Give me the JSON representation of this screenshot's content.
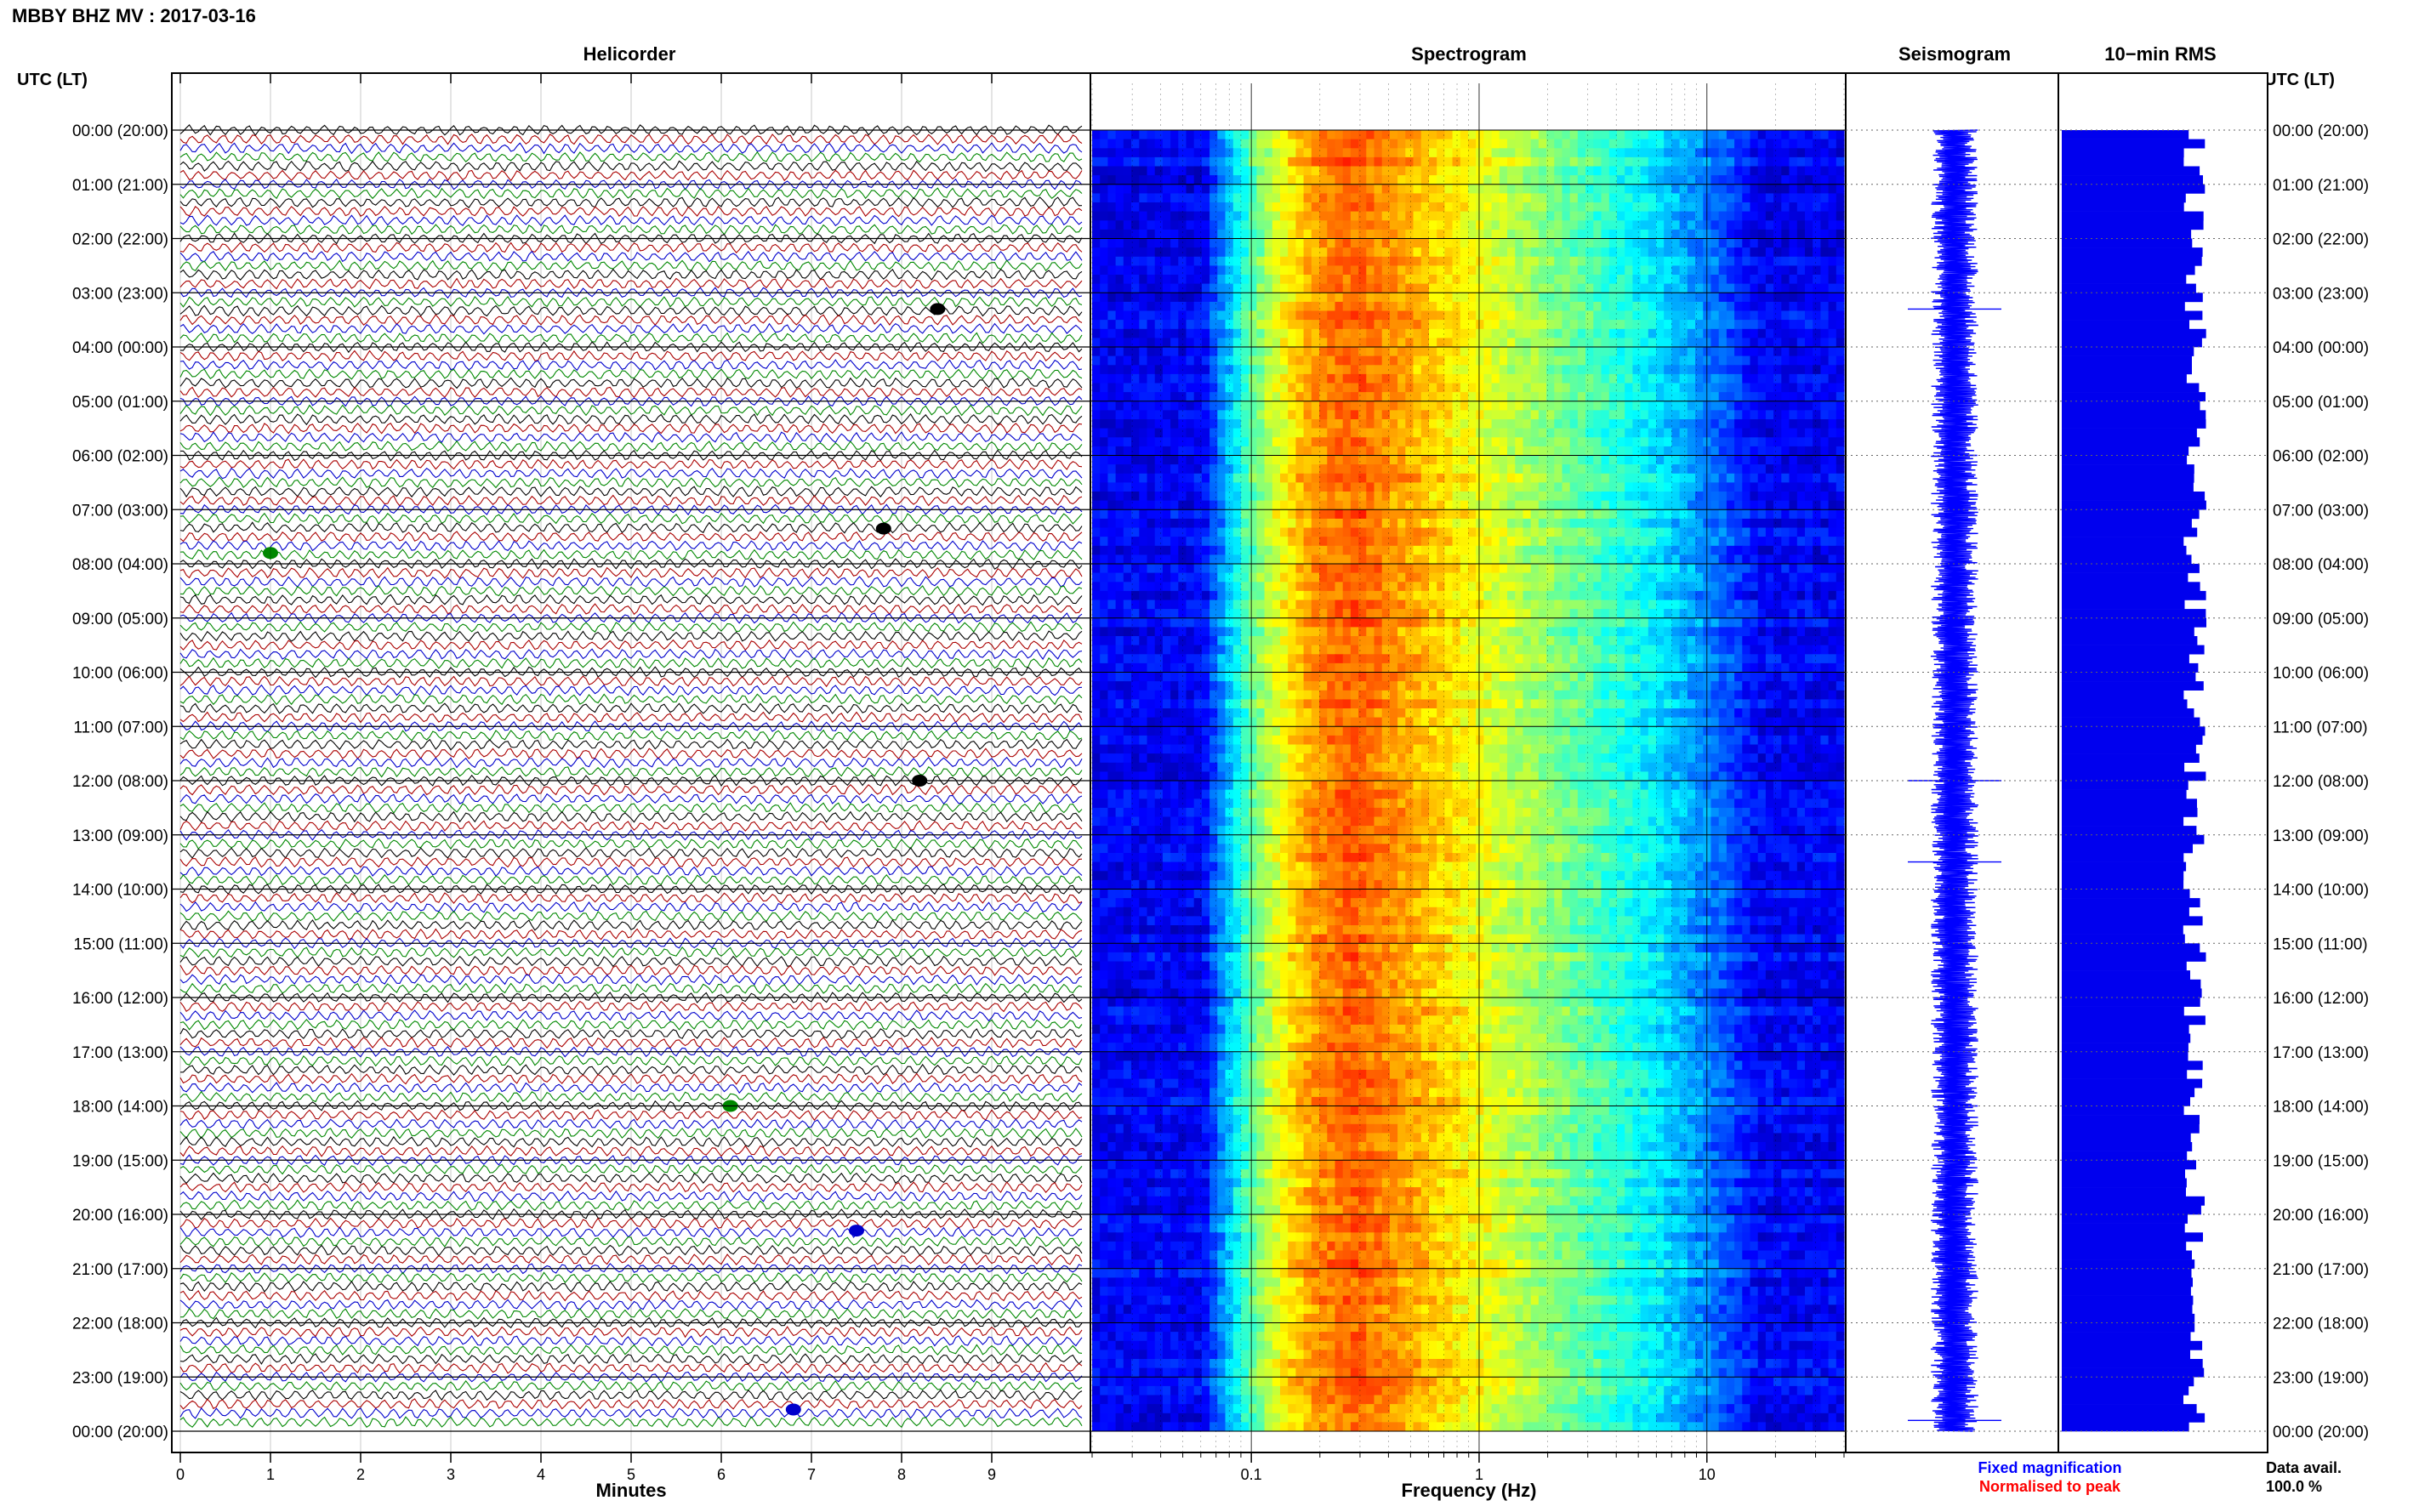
{
  "header": {
    "station_title": "MBBY BHZ MV : 2017-03-16",
    "time_axis_label_left": "UTC (LT)",
    "time_axis_label_right": "UTC (LT)"
  },
  "panels": {
    "helicorder": "Helicorder",
    "spectrogram": "Spectrogram",
    "seismogram": "Seismogram",
    "rms": "10−min RMS"
  },
  "axes": {
    "minutes_label": "Minutes",
    "frequency_label": "Frequency (Hz)"
  },
  "legend": {
    "fixed_magnification": "Fixed magnification",
    "normalised_to_peak": "Normalised to peak",
    "fixed_color": "#0000ff",
    "normalised_color": "#ff0000"
  },
  "data_availability": {
    "label": "Data avail.",
    "value": "100.0 %"
  },
  "colors": {
    "trace_cycle": [
      "#000000",
      "#aa0000",
      "#0000cc",
      "#008800"
    ],
    "rms_bar": "#0000ee",
    "seismogram": "#0000ff"
  },
  "chart_data": [
    {
      "type": "line",
      "title": "Helicorder",
      "xlabel": "Minutes",
      "ylabel": "UTC (LT)",
      "x_ticks": [
        "0",
        "1",
        "2",
        "3",
        "4",
        "5",
        "6",
        "7",
        "8",
        "9"
      ],
      "xlim": [
        0,
        10
      ],
      "rows_per_hour": 6,
      "row_count": 144,
      "hour_labels": [
        "00:00 (20:00)",
        "01:00 (21:00)",
        "02:00 (22:00)",
        "03:00 (23:00)",
        "04:00 (00:00)",
        "05:00 (01:00)",
        "06:00 (02:00)",
        "07:00 (03:00)",
        "08:00 (04:00)",
        "09:00 (05:00)",
        "10:00 (06:00)",
        "11:00 (07:00)",
        "12:00 (08:00)",
        "13:00 (09:00)",
        "14:00 (10:00)",
        "15:00 (11:00)",
        "16:00 (12:00)",
        "17:00 (13:00)",
        "18:00 (14:00)",
        "19:00 (15:00)",
        "20:00 (16:00)",
        "21:00 (17:00)",
        "22:00 (18:00)",
        "23:00 (19:00)",
        "00:00 (20:00)"
      ],
      "events": [
        {
          "hour": 3.3,
          "minute": 8.4,
          "color": "#000000"
        },
        {
          "hour": 7.35,
          "minute": 7.8,
          "color": "#000000"
        },
        {
          "hour": 7.8,
          "minute": 1.0,
          "color": "#008800"
        },
        {
          "hour": 12.0,
          "minute": 8.2,
          "color": "#000000"
        },
        {
          "hour": 18.0,
          "minute": 6.1,
          "color": "#008800"
        },
        {
          "hour": 20.3,
          "minute": 7.5,
          "color": "#0000cc"
        },
        {
          "hour": 23.6,
          "minute": 6.8,
          "color": "#0000cc"
        }
      ],
      "grid": true
    },
    {
      "type": "heatmap",
      "title": "Spectrogram",
      "xlabel": "Frequency (Hz)",
      "x_scale": "log",
      "xlim": [
        0.02,
        40
      ],
      "x_tick_labels": [
        "0.1",
        "1",
        "10"
      ],
      "x_tick_values": [
        0.1,
        1,
        10
      ],
      "ylim_hours": [
        0,
        24
      ],
      "colormap": "jet",
      "peak_band_hz": [
        0.2,
        0.45
      ],
      "grid": true
    },
    {
      "type": "line",
      "title": "Seismogram",
      "ylim_hours": [
        0,
        24
      ],
      "note_events_hours": [
        3.3,
        12.0,
        13.5,
        23.8
      ]
    },
    {
      "type": "bar",
      "title": "10−min RMS",
      "orientation": "horizontal",
      "ylim_hours": [
        0,
        24
      ],
      "bins": 144,
      "relative_level_range": [
        0.84,
        1.0
      ]
    }
  ]
}
